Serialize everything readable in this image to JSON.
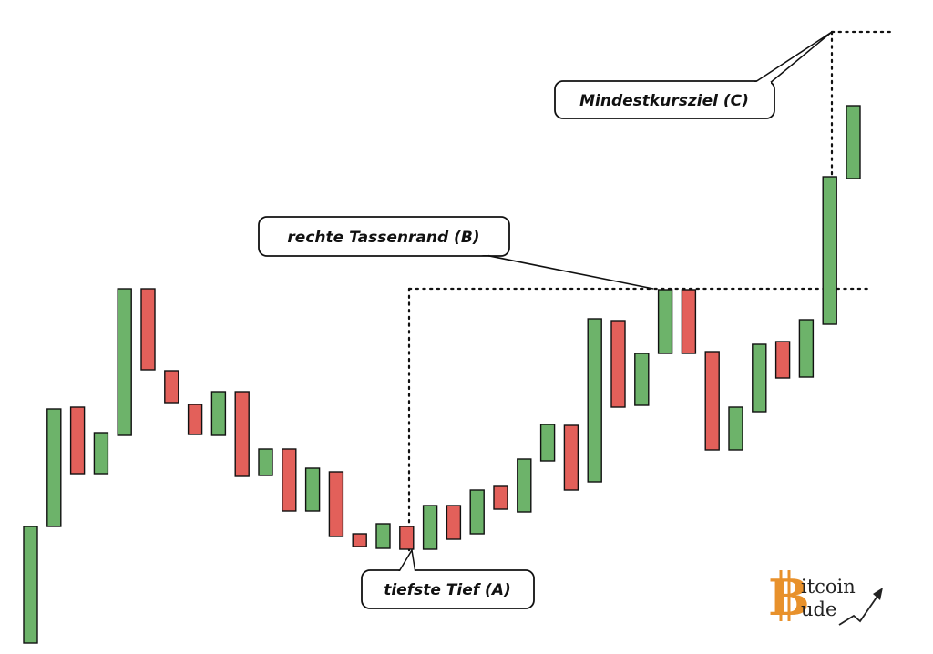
{
  "chart_data": {
    "type": "bar",
    "subtype": "floating-range (candle bodies)",
    "bars": [
      {
        "low": 0,
        "high": 128,
        "color": "up"
      },
      {
        "low": 128,
        "high": 257,
        "color": "up"
      },
      {
        "low": 186,
        "high": 259,
        "color": "down"
      },
      {
        "low": 186,
        "high": 231,
        "color": "up"
      },
      {
        "low": 228,
        "high": 389,
        "color": "up"
      },
      {
        "low": 300,
        "high": 389,
        "color": "down"
      },
      {
        "low": 264,
        "high": 299,
        "color": "down"
      },
      {
        "low": 229,
        "high": 262,
        "color": "down"
      },
      {
        "low": 228,
        "high": 276,
        "color": "up"
      },
      {
        "low": 183,
        "high": 276,
        "color": "down"
      },
      {
        "low": 184,
        "high": 213,
        "color": "up"
      },
      {
        "low": 145,
        "high": 213,
        "color": "down"
      },
      {
        "low": 145,
        "high": 192,
        "color": "up"
      },
      {
        "low": 117,
        "high": 188,
        "color": "down"
      },
      {
        "low": 106,
        "high": 120,
        "color": "down"
      },
      {
        "low": 104,
        "high": 131,
        "color": "up"
      },
      {
        "low": 103,
        "high": 128,
        "color": "down"
      },
      {
        "low": 103,
        "high": 151,
        "color": "up"
      },
      {
        "low": 114,
        "high": 151,
        "color": "down"
      },
      {
        "low": 120,
        "high": 168,
        "color": "up"
      },
      {
        "low": 147,
        "high": 172,
        "color": "down"
      },
      {
        "low": 144,
        "high": 202,
        "color": "up"
      },
      {
        "low": 200,
        "high": 240,
        "color": "up"
      },
      {
        "low": 168,
        "high": 239,
        "color": "down"
      },
      {
        "low": 177,
        "high": 356,
        "color": "up"
      },
      {
        "low": 259,
        "high": 354,
        "color": "down"
      },
      {
        "low": 261,
        "high": 318,
        "color": "up"
      },
      {
        "low": 318,
        "high": 388,
        "color": "up"
      },
      {
        "low": 318,
        "high": 388,
        "color": "down"
      },
      {
        "low": 212,
        "high": 320,
        "color": "down"
      },
      {
        "low": 212,
        "high": 259,
        "color": "up"
      },
      {
        "low": 254,
        "high": 328,
        "color": "up"
      },
      {
        "low": 291,
        "high": 331,
        "color": "down"
      },
      {
        "low": 292,
        "high": 355,
        "color": "up"
      },
      {
        "low": 350,
        "high": 512,
        "color": "up"
      },
      {
        "low": 510,
        "high": 590,
        "color": "up"
      }
    ],
    "levels": {
      "bottom_A": 103,
      "rim_B": 389,
      "target_C": 673
    },
    "colors": {
      "up": "#6db36a",
      "down": "#e3605a",
      "outline": "#111111"
    },
    "annotations": [
      {
        "id": "A",
        "text": "tiefste Tief (A)"
      },
      {
        "id": "B",
        "text": "rechte Tassenrand (B)"
      },
      {
        "id": "C",
        "text": "Mindestkursziel (C)"
      }
    ],
    "axes": "none",
    "grid": false,
    "legend": "none"
  },
  "logo": {
    "initial": "B",
    "top": "itcoin",
    "bottom": "ude"
  }
}
